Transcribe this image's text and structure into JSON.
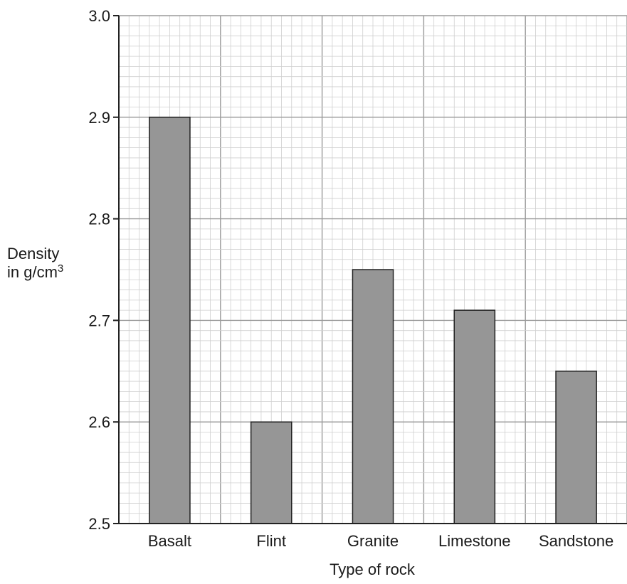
{
  "chart_data": {
    "type": "bar",
    "categories": [
      "Basalt",
      "Flint",
      "Granite",
      "Limestone",
      "Sandstone"
    ],
    "values": [
      2.9,
      2.6,
      2.75,
      2.71,
      2.65
    ],
    "xlabel": "Type of rock",
    "ylabel": "Density",
    "ylabel_line2": "in g/cm",
    "ylabel_superscript": "3",
    "ylim": [
      2.5,
      3.0
    ],
    "yticks": [
      "2.5",
      "2.6",
      "2.7",
      "2.8",
      "2.9",
      "3.0"
    ],
    "grid": true,
    "bar_color": "#969696",
    "legend": "none"
  }
}
